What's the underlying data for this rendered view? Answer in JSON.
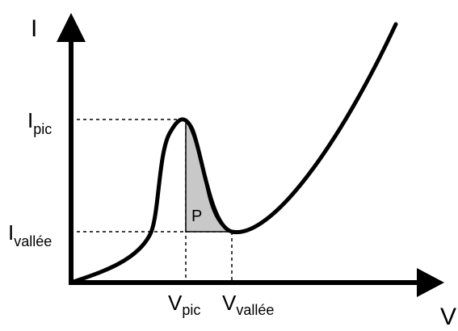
{
  "axes": {
    "y": "I",
    "x": "V"
  },
  "labels": {
    "i_peak": {
      "symbol": "I",
      "sub": "pic"
    },
    "i_valley": {
      "symbol": "I",
      "sub": "vallée"
    },
    "v_peak": {
      "symbol": "V",
      "sub": "pic"
    },
    "v_valley": {
      "symbol": "V",
      "sub": "vallée"
    }
  },
  "region": "P"
}
